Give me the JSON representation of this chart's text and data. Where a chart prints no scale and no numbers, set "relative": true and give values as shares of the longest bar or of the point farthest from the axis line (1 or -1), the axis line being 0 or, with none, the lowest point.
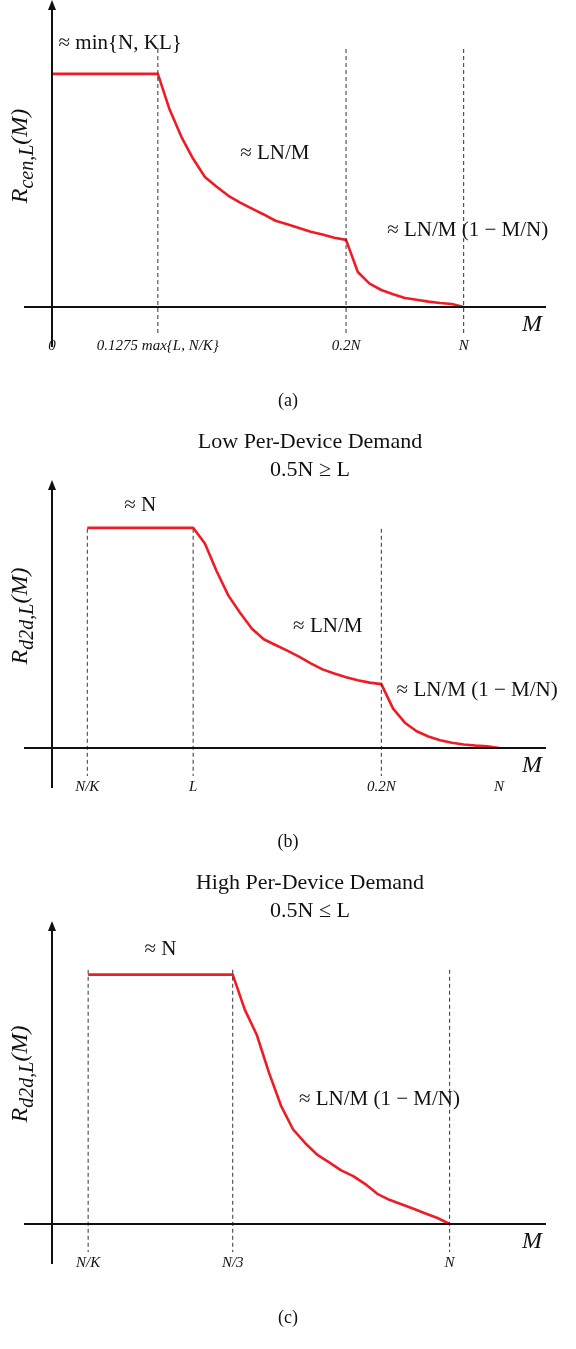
{
  "chart_data": [
    {
      "type": "line",
      "relative": true,
      "marker": "none",
      "xlabel": "M",
      "ylabel": "R$_{cen,L}$(M)",
      "categories": [
        "0",
        null,
        null,
        null,
        null,
        null,
        null,
        null,
        null,
        "0.1275 max{L, N/K}",
        null,
        null,
        null,
        null,
        null,
        null,
        null,
        null,
        null,
        null,
        null,
        null,
        null,
        null,
        null,
        "0.2N",
        null,
        null,
        null,
        null,
        null,
        null,
        null,
        null,
        null,
        "N",
        null,
        null,
        null,
        null,
        null,
        null,
        null
      ],
      "series": [
        {
          "color": "#ee1c25",
          "values": [
            1,
            1,
            1,
            1,
            1,
            1,
            1,
            1,
            1,
            1,
            0.847,
            0.73,
            0.636,
            0.558,
            0.516,
            0.477,
            0.448,
            0.422,
            0.397,
            0.37,
            0.355,
            0.339,
            0.323,
            0.311,
            0.297,
            0.288,
            0.15,
            0.1,
            0.073,
            0.055,
            0.039,
            0.031,
            0.023,
            0.017,
            0.013,
            0,
            null,
            null,
            null,
            null,
            null,
            null,
            null
          ]
        }
      ],
      "ref_lines": [
        {
          "axis": "x",
          "value": "0.1275 max{L, N/K}",
          "line_style": "dashed"
        },
        {
          "axis": "x",
          "value": "0.2N",
          "line_style": "dashed"
        },
        {
          "axis": "x",
          "value": "N",
          "line_style": "dashed"
        }
      ],
      "annotations": [
        "≈ min{N, KL}",
        "≈ LN/M",
        "≈ LN/M (1 − M/N)",
        "(a)"
      ]
    },
    {
      "type": "line",
      "relative": true,
      "marker": "none",
      "title": "Low Per-Device Demand",
      "subtitle": "0.5N ≥ L",
      "xlabel": "M",
      "ylabel": "R$_{d2d,L}$(M)",
      "categories": [
        null,
        null,
        null,
        "N/K",
        null,
        null,
        null,
        null,
        null,
        null,
        null,
        null,
        "L",
        null,
        null,
        null,
        null,
        null,
        null,
        null,
        null,
        null,
        null,
        null,
        null,
        null,
        null,
        null,
        "0.2N",
        null,
        null,
        null,
        null,
        null,
        null,
        null,
        null,
        null,
        "N",
        null,
        null,
        null,
        null
      ],
      "series": [
        {
          "color": "#ee1c25",
          "values": [
            null,
            null,
            null,
            1,
            1,
            1,
            1,
            1,
            1,
            1,
            1,
            1,
            1,
            0.929,
            0.803,
            0.692,
            0.613,
            0.542,
            0.494,
            0.468,
            0.442,
            0.415,
            0.384,
            0.357,
            0.338,
            0.321,
            0.308,
            0.297,
            0.29,
            0.179,
            0.115,
            0.076,
            0.052,
            0.035,
            0.024,
            0.016,
            0.011,
            0.008,
            0,
            null,
            null,
            null,
            null
          ]
        }
      ],
      "ref_lines": [
        {
          "axis": "x",
          "value": "N/K",
          "line_style": "dashed"
        },
        {
          "axis": "x",
          "value": "L",
          "line_style": "dashed"
        },
        {
          "axis": "x",
          "value": "0.2N",
          "line_style": "dashed"
        }
      ],
      "annotations": [
        "≈ N",
        "≈ LN/M",
        "≈ LN/M (1 − M/N)",
        "(b)"
      ]
    },
    {
      "type": "line",
      "relative": true,
      "marker": "none",
      "title": "High Per-Device Demand",
      "subtitle": "0.5N ≤ L",
      "xlabel": "M",
      "ylabel": "R$_{d2d,L}$(M)",
      "categories": [
        null,
        null,
        null,
        "N/K",
        null,
        null,
        null,
        null,
        null,
        null,
        null,
        null,
        null,
        null,
        null,
        "N/3",
        null,
        null,
        null,
        null,
        null,
        null,
        null,
        null,
        null,
        null,
        null,
        null,
        null,
        null,
        null,
        null,
        null,
        "N",
        null,
        null,
        null,
        null,
        null,
        null,
        null,
        null
      ],
      "series": [
        {
          "color": "#ee1c25",
          "values": [
            null,
            null,
            null,
            1,
            1,
            1,
            1,
            1,
            1,
            1,
            1,
            1,
            1,
            1,
            1,
            1,
            0.86,
            0.758,
            0.608,
            0.475,
            0.38,
            0.325,
            0.278,
            0.247,
            0.215,
            0.192,
            0.16,
            0.121,
            0.097,
            0.079,
            0.061,
            0.042,
            0.024,
            0,
            null,
            null,
            null,
            null,
            null,
            null,
            null,
            null
          ]
        }
      ],
      "ref_lines": [
        {
          "axis": "x",
          "value": "N/K",
          "line_style": "dashed"
        },
        {
          "axis": "x",
          "value": "N/3",
          "line_style": "dashed"
        },
        {
          "axis": "x",
          "value": "N",
          "line_style": "dashed"
        }
      ],
      "annotations": [
        "≈ N",
        "≈ LN/M (1 − M/N)",
        "(c)"
      ]
    }
  ]
}
